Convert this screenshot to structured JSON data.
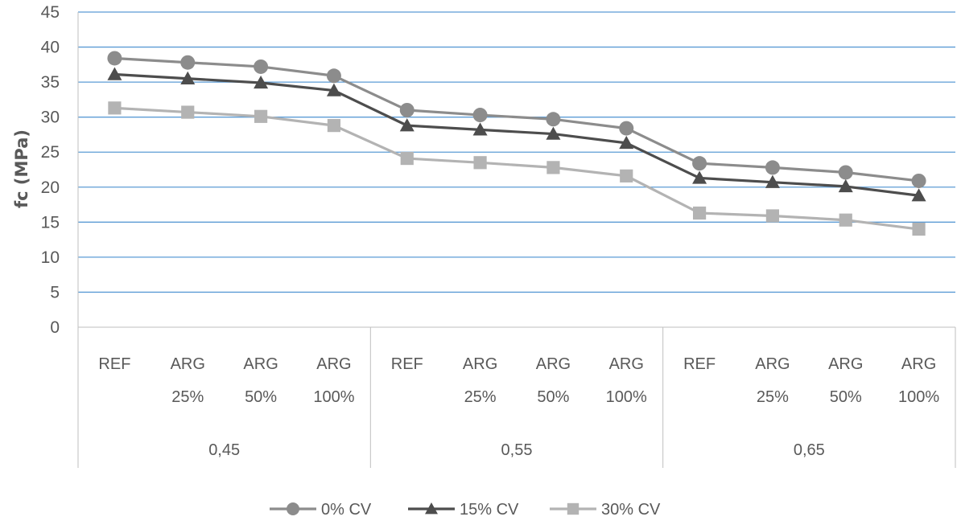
{
  "chart_data": {
    "type": "line",
    "title": "",
    "xlabel": "",
    "ylabel": "fc (MPa)",
    "ylim": [
      0,
      45
    ],
    "ytick_step": 5,
    "grid": true,
    "legend_position": "bottom",
    "groups": [
      {
        "label": "0,45",
        "categories": [
          [
            "REF"
          ],
          [
            "ARG",
            "25%"
          ],
          [
            "ARG",
            "50%"
          ],
          [
            "ARG",
            "100%"
          ]
        ]
      },
      {
        "label": "0,55",
        "categories": [
          [
            "REF"
          ],
          [
            "ARG",
            "25%"
          ],
          [
            "ARG",
            "50%"
          ],
          [
            "ARG",
            "100%"
          ]
        ]
      },
      {
        "label": "0,65",
        "categories": [
          [
            "REF"
          ],
          [
            "ARG",
            "25%"
          ],
          [
            "ARG",
            "50%"
          ],
          [
            "ARG",
            "100%"
          ]
        ]
      }
    ],
    "series": [
      {
        "name": "0% CV",
        "marker": "circle",
        "color": "#8c8c8c",
        "values": [
          38.4,
          37.8,
          37.2,
          35.9,
          31.0,
          30.3,
          29.7,
          28.4,
          23.4,
          22.8,
          22.1,
          20.9
        ]
      },
      {
        "name": "15% CV",
        "marker": "triangle",
        "color": "#4d4d4d",
        "values": [
          36.1,
          35.5,
          34.9,
          33.8,
          28.8,
          28.2,
          27.6,
          26.3,
          21.3,
          20.7,
          20.1,
          18.8
        ]
      },
      {
        "name": "30% CV",
        "marker": "square",
        "color": "#b3b3b3",
        "values": [
          31.3,
          30.7,
          30.1,
          28.8,
          24.1,
          23.5,
          22.8,
          21.6,
          16.3,
          15.9,
          15.3,
          14.0
        ]
      }
    ]
  },
  "colors": {
    "gridline": "#5b9bd5",
    "axis": "#bfbfbf",
    "text": "#595959"
  }
}
